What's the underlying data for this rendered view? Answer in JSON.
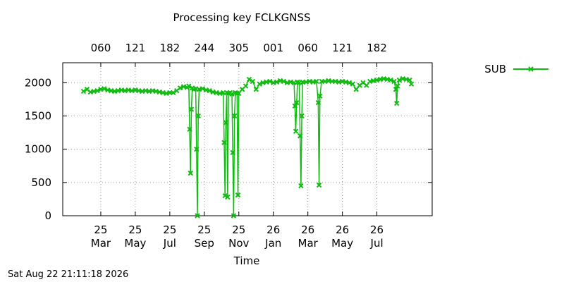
{
  "chart_data": {
    "type": "line",
    "title": "Processing key FCLKGNSS",
    "xlabel": "Time",
    "ylabel": "",
    "ylim": [
      0,
      2300
    ],
    "xlim": [
      0,
      13
    ],
    "grid": true,
    "legend_position": "top-right, outside plot",
    "y_ticks": [
      "0",
      "500",
      "1000",
      "1500",
      "2000"
    ],
    "y_tick_values": [
      0,
      500,
      1000,
      1500,
      2000
    ],
    "x_ticks": [
      {
        "month": "Mar",
        "year": "25"
      },
      {
        "month": "May",
        "year": "25"
      },
      {
        "month": "Jul",
        "year": "25"
      },
      {
        "month": "Sep",
        "year": "25"
      },
      {
        "month": "Nov",
        "year": "25"
      },
      {
        "month": "Jan",
        "year": "26"
      },
      {
        "month": "Mar",
        "year": "26"
      },
      {
        "month": "May",
        "year": "26"
      },
      {
        "month": "Jul",
        "year": "26"
      }
    ],
    "x_tick_values": [
      1,
      3,
      5,
      7,
      9,
      11,
      13,
      15,
      17
    ],
    "top_ticks": [
      "060",
      "121",
      "182",
      "244",
      "305",
      "001",
      "060",
      "121",
      "182"
    ],
    "series": [
      {
        "name": "SUB",
        "color": "#11bb11",
        "marker": "x-cross",
        "points": [
          [
            0,
            1870
          ],
          [
            0.2,
            1900
          ],
          [
            0.4,
            1860
          ],
          [
            0.6,
            1870
          ],
          [
            0.8,
            1880
          ],
          [
            1.0,
            1900
          ],
          [
            1.2,
            1910
          ],
          [
            1.4,
            1890
          ],
          [
            1.6,
            1880
          ],
          [
            1.8,
            1870
          ],
          [
            2.0,
            1880
          ],
          [
            2.2,
            1890
          ],
          [
            2.4,
            1880
          ],
          [
            2.6,
            1890
          ],
          [
            2.8,
            1880
          ],
          [
            3.0,
            1890
          ],
          [
            3.2,
            1880
          ],
          [
            3.4,
            1870
          ],
          [
            3.6,
            1880
          ],
          [
            3.8,
            1870
          ],
          [
            4.0,
            1880
          ],
          [
            4.2,
            1870
          ],
          [
            4.4,
            1860
          ],
          [
            4.6,
            1850
          ],
          [
            4.8,
            1840
          ],
          [
            5.0,
            1850
          ],
          [
            5.2,
            1850
          ],
          [
            5.4,
            1880
          ],
          [
            5.6,
            1920
          ],
          [
            5.8,
            1940
          ],
          [
            6.0,
            1930
          ],
          [
            6.1,
            1950
          ],
          [
            6.15,
            1300
          ],
          [
            6.2,
            640
          ],
          [
            6.25,
            1600
          ],
          [
            6.3,
            1920
          ],
          [
            6.4,
            1900
          ],
          [
            6.5,
            1910
          ],
          [
            6.55,
            1000
          ],
          [
            6.6,
            0
          ],
          [
            6.65,
            1500
          ],
          [
            6.7,
            1900
          ],
          [
            6.9,
            1910
          ],
          [
            7.1,
            1890
          ],
          [
            7.3,
            1880
          ],
          [
            7.5,
            1860
          ],
          [
            7.7,
            1850
          ],
          [
            7.9,
            1840
          ],
          [
            8.1,
            1850
          ],
          [
            8.15,
            1100
          ],
          [
            8.2,
            300
          ],
          [
            8.25,
            1400
          ],
          [
            8.3,
            1850
          ],
          [
            8.35,
            280
          ],
          [
            8.4,
            1840
          ],
          [
            8.5,
            1850
          ],
          [
            8.6,
            1830
          ],
          [
            8.65,
            950
          ],
          [
            8.7,
            0
          ],
          [
            8.75,
            1500
          ],
          [
            8.8,
            1850
          ],
          [
            8.9,
            1840
          ],
          [
            8.95,
            310
          ],
          [
            9.0,
            1840
          ],
          [
            9.2,
            1900
          ],
          [
            9.4,
            1950
          ],
          [
            9.6,
            2050
          ],
          [
            9.8,
            2020
          ],
          [
            10.0,
            1900
          ],
          [
            10.2,
            1980
          ],
          [
            10.4,
            2000
          ],
          [
            10.6,
            2010
          ],
          [
            10.8,
            2020
          ],
          [
            11.0,
            2000
          ],
          [
            11.2,
            2010
          ],
          [
            11.4,
            2030
          ],
          [
            11.6,
            2020
          ],
          [
            11.8,
            2000
          ],
          [
            12.0,
            2010
          ],
          [
            12.2,
            2000
          ],
          [
            12.25,
            1650
          ],
          [
            12.3,
            1270
          ],
          [
            12.35,
            1700
          ],
          [
            12.4,
            2010
          ],
          [
            12.5,
            2000
          ],
          [
            12.55,
            1200
          ],
          [
            12.6,
            450
          ],
          [
            12.65,
            1500
          ],
          [
            12.7,
            2010
          ],
          [
            12.9,
            2010
          ],
          [
            13.1,
            2020
          ],
          [
            13.3,
            2010
          ],
          [
            13.5,
            2020
          ],
          [
            13.6,
            1700
          ],
          [
            13.65,
            460
          ],
          [
            13.7,
            1800
          ],
          [
            13.8,
            2020
          ],
          [
            14.0,
            2020
          ],
          [
            14.2,
            2030
          ],
          [
            14.4,
            2020
          ],
          [
            14.6,
            2020
          ],
          [
            14.8,
            2010
          ],
          [
            15.0,
            2020
          ],
          [
            15.2,
            2010
          ],
          [
            15.4,
            2000
          ],
          [
            15.6,
            1980
          ],
          [
            15.8,
            1900
          ],
          [
            16.0,
            1960
          ],
          [
            16.2,
            2000
          ],
          [
            16.4,
            1960
          ],
          [
            16.6,
            2020
          ],
          [
            16.8,
            2030
          ],
          [
            17.0,
            2040
          ],
          [
            17.2,
            2050
          ],
          [
            17.4,
            2060
          ],
          [
            17.6,
            2050
          ],
          [
            17.8,
            2040
          ],
          [
            18.0,
            2020
          ],
          [
            18.1,
            1900
          ],
          [
            18.15,
            1690
          ],
          [
            18.2,
            1950
          ],
          [
            18.3,
            2040
          ],
          [
            18.5,
            2060
          ],
          [
            18.7,
            2050
          ],
          [
            18.9,
            2040
          ],
          [
            19.0,
            1980
          ]
        ]
      }
    ]
  },
  "footer": {
    "timestamp": "Sat Aug 22 21:11:18 2026"
  }
}
